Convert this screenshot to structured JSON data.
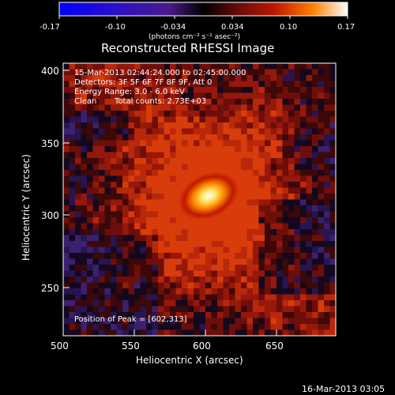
{
  "colorbar": {
    "ticks": [
      "-0.17",
      "-0.10",
      "-0.034",
      "0.034",
      "0.10",
      "0.17"
    ],
    "units": "(photons cm⁻² s⁻¹ asec⁻²)"
  },
  "title": "Reconstructed RHESSI Image",
  "annotations": {
    "time_range": "15-Mar-2013 02:44:24.000 to 02:45:00.000",
    "detectors": "Detectors: 3F 5F 6F 7F 8F 9F, Att 0",
    "energy": "Energy Range: 3.0 - 6.0 keV",
    "algorithm": "Clean",
    "counts": "Total counts: 2.73E+03",
    "peak": "Position of Peak = [602,313]"
  },
  "axes": {
    "xlabel": "Heliocentric X (arcsec)",
    "ylabel": "Heliocentric Y (arcsec)",
    "xticks": [
      "500",
      "550",
      "600",
      "650"
    ],
    "yticks": [
      "400",
      "350",
      "300",
      "250"
    ]
  },
  "footer": {
    "date": "16-Mar-2013 03:05"
  },
  "colors": {
    "background": "#000000",
    "colormap": [
      "#0000ff",
      "#3010a0",
      "#38206a",
      "#000000",
      "#7a0c0c",
      "#cc2000",
      "#ff8c00",
      "#ffffff"
    ]
  }
}
